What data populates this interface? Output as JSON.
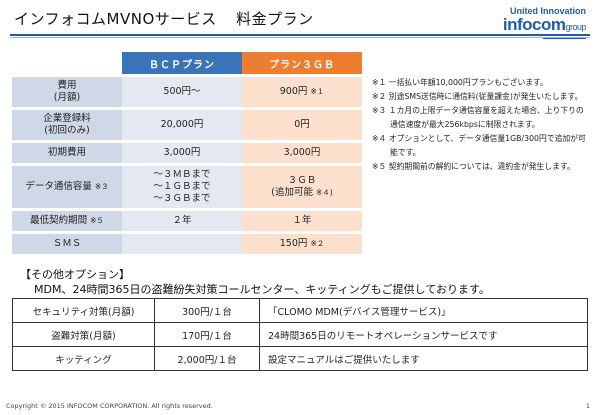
{
  "header": {
    "title": "インフォコムMVNOサービス",
    "subtitle": "料金プラン",
    "logo_line1": "United Innovation",
    "logo_line2": "infocom",
    "logo_line2_suffix": "group"
  },
  "plan_table": {
    "columns": [
      "ＢＣＰプラン",
      "プラン３ＧＢ"
    ],
    "rows": [
      {
        "label": "費用\n(月額)",
        "bcp": "500円～",
        "p3": "900円",
        "p3_note": "※１"
      },
      {
        "label": "企業登録料\n(初回のみ)",
        "bcp": "20,000円",
        "p3": "0円",
        "p3_note": ""
      },
      {
        "label": "初期費用",
        "bcp": "3,000円",
        "p3": "3,000円",
        "p3_note": ""
      },
      {
        "label": "データ通信容量",
        "label_note": "※３",
        "bcp": "～３ＭＢまで\n～１ＧＢまで\n～３ＧＢまで",
        "p3": "３ＧＢ\n(追加可能",
        "p3_note": "※４)"
      },
      {
        "label": "最低契約期間",
        "label_note": "※５",
        "bcp": "２年",
        "p3": "１年",
        "p3_note": ""
      },
      {
        "label": "ＳＭＳ",
        "bcp": "",
        "p3": "150円",
        "p3_note": "※２"
      }
    ]
  },
  "notes": [
    "※１ 一括払い年額10,000円プランもございます。",
    "※２ 別途SMS送信時に通信料(従量課金)が発生いたします。",
    "※３ １カ月の上限データ通信容量を超えた場合、上り下りの通信速度が最大256kbpsに制限されます。",
    "※４ オプションとして、データ通信量1GB/300円で追加が可能です。",
    "※５ 契約期間前の解約については、違約金が発生します。"
  ],
  "options": {
    "title": "【その他オプション】",
    "description": "MDM、24時間365日の盗難紛失対策コールセンター、キッティングもご提供しております。",
    "rows": [
      {
        "name": "セキュリティ対策(月額)",
        "price": "300円/１台",
        "detail": "「CLOMO MDM(デバイス管理サービス)」"
      },
      {
        "name": "盗難対策(月額)",
        "price": "170円/１台",
        "detail": "24時間365日のリモートオペレーションサービスです"
      },
      {
        "name": "キッティング",
        "price": "2,000円/１台",
        "detail": "設定マニュアルはご提供いたします"
      }
    ]
  },
  "footer": {
    "copyright": "Copyright © 2015  INFOCOM CORPORATION. All rights reserved.",
    "page": "1"
  },
  "colors": {
    "bcp_header": "#3b73b9",
    "p3_header": "#ed7d31",
    "brand": "#1d5fa8"
  }
}
